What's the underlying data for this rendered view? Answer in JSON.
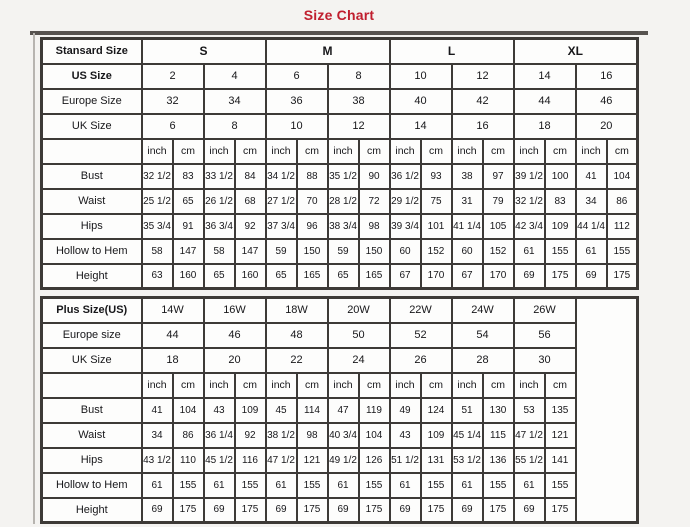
{
  "title": "Size Chart",
  "colors": {
    "title": "#c01e2e",
    "border": "#3d3a37",
    "cell_background": "#fdfdfc"
  },
  "chart_data": [
    {
      "type": "table",
      "name": "standard-size-table",
      "corner_label": "Stansard Size",
      "size_groups": [
        "S",
        "M",
        "L",
        "XL"
      ],
      "header_rows": [
        {
          "label": "US Size",
          "bold": true,
          "values": [
            "2",
            "4",
            "6",
            "8",
            "10",
            "12",
            "14",
            "16"
          ]
        },
        {
          "label": "Europe Size",
          "bold": false,
          "values": [
            "32",
            "34",
            "36",
            "38",
            "40",
            "42",
            "44",
            "46"
          ]
        },
        {
          "label": "UK Size",
          "bold": false,
          "values": [
            "6",
            "8",
            "10",
            "12",
            "14",
            "16",
            "18",
            "20"
          ]
        }
      ],
      "unit_labels": [
        "inch",
        "cm"
      ],
      "unit_pairs": 8,
      "measurement_rows": [
        {
          "label": "Bust",
          "values": [
            "32 1/2",
            "83",
            "33 1/2",
            "84",
            "34 1/2",
            "88",
            "35 1/2",
            "90",
            "36 1/2",
            "93",
            "38",
            "97",
            "39 1/2",
            "100",
            "41",
            "104"
          ]
        },
        {
          "label": "Waist",
          "values": [
            "25 1/2",
            "65",
            "26 1/2",
            "68",
            "27 1/2",
            "70",
            "28 1/2",
            "72",
            "29 1/2",
            "75",
            "31",
            "79",
            "32 1/2",
            "83",
            "34",
            "86"
          ]
        },
        {
          "label": "Hips",
          "values": [
            "35 3/4",
            "91",
            "36 3/4",
            "92",
            "37 3/4",
            "96",
            "38 3/4",
            "98",
            "39 3/4",
            "101",
            "41 1/4",
            "105",
            "42 3/4",
            "109",
            "44 1/4",
            "112"
          ]
        },
        {
          "label": "Hollow to Hem",
          "values": [
            "58",
            "147",
            "58",
            "147",
            "59",
            "150",
            "59",
            "150",
            "60",
            "152",
            "60",
            "152",
            "61",
            "155",
            "61",
            "155"
          ]
        },
        {
          "label": "Height",
          "values": [
            "63",
            "160",
            "65",
            "160",
            "65",
            "165",
            "65",
            "165",
            "67",
            "170",
            "67",
            "170",
            "69",
            "175",
            "69",
            "175"
          ]
        }
      ]
    },
    {
      "type": "table",
      "name": "plus-size-table",
      "corner_label": "Plus Size(US)",
      "sizes": [
        "14W",
        "16W",
        "18W",
        "20W",
        "22W",
        "24W",
        "26W"
      ],
      "header_rows": [
        {
          "label": "Europe size",
          "bold": false,
          "values": [
            "44",
            "46",
            "48",
            "50",
            "52",
            "54",
            "56"
          ]
        },
        {
          "label": "UK Size",
          "bold": false,
          "values": [
            "18",
            "20",
            "22",
            "24",
            "26",
            "28",
            "30"
          ]
        }
      ],
      "unit_labels": [
        "inch",
        "cm"
      ],
      "unit_pairs": 7,
      "measurement_rows": [
        {
          "label": "Bust",
          "values": [
            "41",
            "104",
            "43",
            "109",
            "45",
            "114",
            "47",
            "119",
            "49",
            "124",
            "51",
            "130",
            "53",
            "135"
          ]
        },
        {
          "label": "Waist",
          "values": [
            "34",
            "86",
            "36 1/4",
            "92",
            "38 1/2",
            "98",
            "40 3/4",
            "104",
            "43",
            "109",
            "45 1/4",
            "115",
            "47 1/2",
            "121"
          ]
        },
        {
          "label": "Hips",
          "values": [
            "43 1/2",
            "110",
            "45 1/2",
            "116",
            "47 1/2",
            "121",
            "49 1/2",
            "126",
            "51 1/2",
            "131",
            "53 1/2",
            "136",
            "55 1/2",
            "141"
          ]
        },
        {
          "label": "Hollow to Hem",
          "values": [
            "61",
            "155",
            "61",
            "155",
            "61",
            "155",
            "61",
            "155",
            "61",
            "155",
            "61",
            "155",
            "61",
            "155"
          ]
        },
        {
          "label": "Height",
          "values": [
            "69",
            "175",
            "69",
            "175",
            "69",
            "175",
            "69",
            "175",
            "69",
            "175",
            "69",
            "175",
            "69",
            "175"
          ]
        }
      ]
    }
  ]
}
